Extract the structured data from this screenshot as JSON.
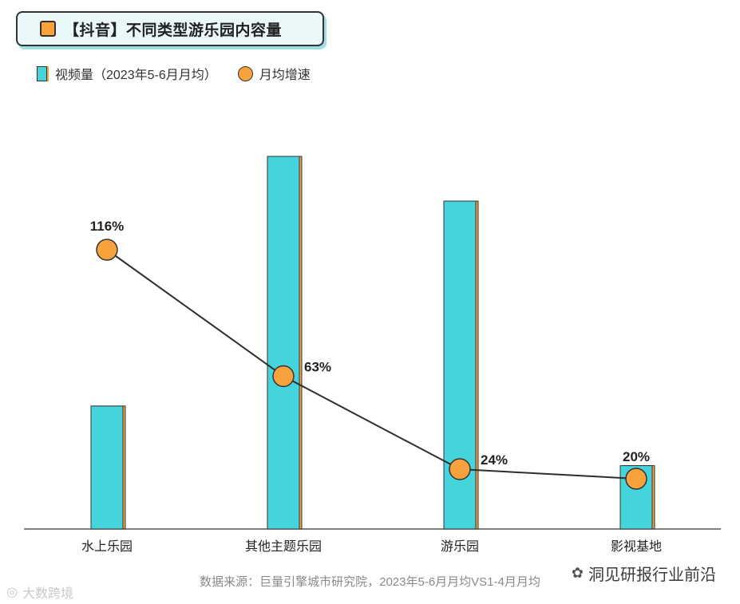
{
  "title": "【抖音】不同类型游乐园内容量",
  "legend": {
    "bar_label": "视频量（2023年5-6月月均）",
    "dot_label": "月均增速"
  },
  "source": "数据来源：巨量引擎城市研究院，2023年5-6月月均VS1-4月月均",
  "watermark_right": "洞见研报行业前沿",
  "watermark_left": "大数跨境",
  "colors": {
    "bar": "#45d4dc",
    "bar_edge": "#f7a23c",
    "dot": "#f7a23c",
    "line": "#2e2e2e",
    "title_bg": "#eaf8f9"
  },
  "chart_data": {
    "type": "bar",
    "categories": [
      "水上乐园",
      "其他主题乐园",
      "游乐园",
      "影视基地"
    ],
    "series": [
      {
        "name": "视频量（2023年5-6月月均）",
        "type": "bar",
        "values": [
          33,
          100,
          88,
          17
        ]
      },
      {
        "name": "月均增速",
        "type": "line",
        "values": [
          116,
          63,
          24,
          20
        ],
        "labels": [
          "116%",
          "63%",
          "24%",
          "20%"
        ]
      }
    ],
    "bar_ylim": [
      0,
      100
    ],
    "line_ylim": [
      0,
      120
    ],
    "grid": false,
    "legend_position": "top-left"
  }
}
